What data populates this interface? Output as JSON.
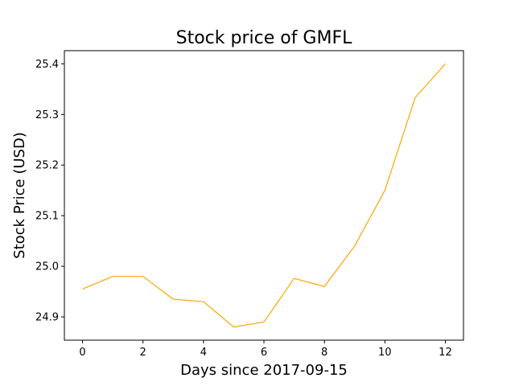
{
  "chart_data": {
    "type": "line",
    "title": "Stock price of GMFL",
    "xlabel": "Days since 2017-09-15",
    "ylabel": "Stock Price (USD)",
    "x": [
      0,
      1,
      2,
      3,
      4,
      5,
      6,
      7,
      8,
      9,
      10,
      11,
      12
    ],
    "series": [
      {
        "values": [
          24.955,
          24.98,
          24.98,
          24.935,
          24.93,
          24.88,
          24.89,
          24.976,
          24.96,
          25.04,
          25.15,
          25.333,
          25.4
        ],
        "color": "#ffa500"
      }
    ],
    "xlim": [
      -0.6,
      12.6
    ],
    "ylim": [
      24.854,
      25.426
    ],
    "xticks": [
      0,
      2,
      4,
      6,
      8,
      10,
      12
    ],
    "yticks": [
      24.9,
      25.0,
      25.1,
      25.2,
      25.3,
      25.4
    ],
    "xtick_labels": [
      "0",
      "2",
      "4",
      "6",
      "8",
      "10",
      "12"
    ],
    "ytick_labels": [
      "24.9",
      "25.0",
      "25.1",
      "25.2",
      "25.3",
      "25.4"
    ],
    "grid": false,
    "legend": "none"
  }
}
